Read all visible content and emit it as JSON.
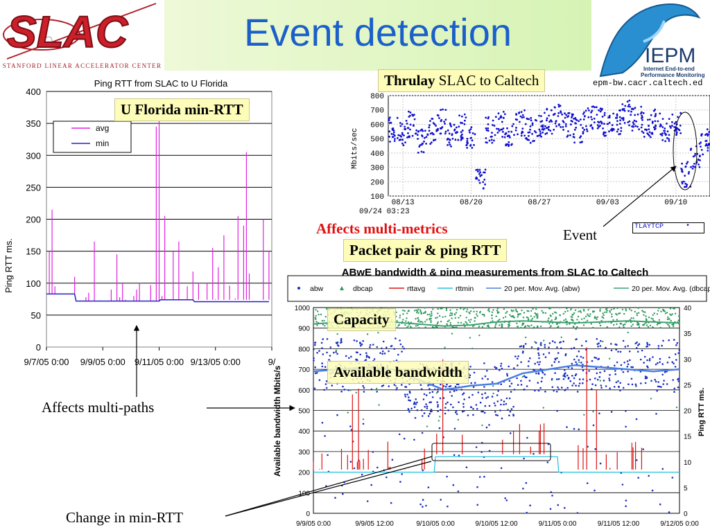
{
  "slide": {
    "title": "Event detection",
    "slac_logo_text": "SLAC",
    "slac_caption": "Stanford Linear Accelerator Center",
    "iepm_logo_text": "IEPM",
    "iepm_caption_1": "Internet End-to-end",
    "iepm_caption_2": "Performance Monitoring"
  },
  "annotations": {
    "ufl_min_rtt": "U Florida min-RTT",
    "thrulay_bold": "Thrulay",
    "thrulay_rest": " SLAC to Caltech",
    "affects_multi_metrics": "Affects multi-metrics",
    "event": "Event",
    "packet_pair": "Packet pair & ping RTT",
    "capacity": "Capacity",
    "available_bandwidth": "Available bandwidth",
    "affects_multi_paths": "Affects multi-paths",
    "change_min_rtt": "Change in min-RTT"
  },
  "colors": {
    "title": "#1b5fc9",
    "avg": "#e020e0",
    "min": "#2020c0",
    "thrulay_points": "#1010d0",
    "abw": "#1a2fbf",
    "dbcap": "#2e9a5a",
    "rttavg": "#e01010",
    "rttmin": "#20c0e0",
    "mov_abw": "#4a7fe0",
    "mov_dbcap": "#3aa070",
    "highlight": "#fdfdb9"
  },
  "chart_data": [
    {
      "type": "line",
      "title": "Ping RTT from SLAC to U Florida",
      "ylabel": "Ping RTT ms.",
      "xlabel": "",
      "ylim": [
        0,
        400
      ],
      "yticks": [
        0,
        50,
        100,
        150,
        200,
        250,
        300,
        350,
        400
      ],
      "xticks": [
        "9/7/05 0:00",
        "9/9/05 0:00",
        "9/11/05 0:00",
        "9/13/05 0:00",
        "9/"
      ],
      "grid": true,
      "legend": "top-left",
      "series": [
        {
          "name": "avg",
          "x": [
            0.0,
            0.1,
            0.2,
            0.3,
            0.4,
            0.5,
            0.6,
            0.7,
            0.8,
            0.9,
            1.0,
            1.1,
            1.2,
            1.3,
            1.4,
            1.5,
            1.6,
            1.7,
            1.8,
            1.9,
            2.0,
            2.1,
            2.2,
            2.3,
            2.4,
            2.5,
            2.6,
            2.7,
            2.8,
            2.9,
            3.0,
            3.1,
            3.2,
            3.3,
            3.4,
            3.5,
            3.6,
            3.7,
            3.8,
            3.9,
            4.0,
            4.1,
            4.2,
            4.3,
            4.4,
            4.5,
            4.6,
            4.7,
            4.8,
            4.9,
            5.0,
            5.1,
            5.2,
            5.3,
            5.4,
            5.5,
            5.6,
            5.7,
            5.8,
            5.9,
            6.0,
            6.1,
            6.2,
            6.3,
            6.4,
            6.5,
            6.6,
            6.7,
            6.8,
            6.9,
            7.0,
            7.1,
            7.2,
            7.3,
            7.4,
            7.5,
            7.6,
            7.7,
            7.8,
            7.9
          ],
          "values": [
            83,
            150,
            215,
            95,
            83,
            83,
            83,
            83,
            83,
            83,
            110,
            72,
            73,
            72,
            78,
            85,
            72,
            165,
            72,
            73,
            72,
            72,
            73,
            90,
            73,
            145,
            78,
            100,
            74,
            72,
            72,
            80,
            90,
            100,
            72,
            72,
            72,
            97,
            73,
            345,
            380,
            80,
            205,
            74,
            74,
            150,
            74,
            165,
            74,
            74,
            95,
            74,
            118,
            74,
            100,
            74,
            74,
            100,
            74,
            155,
            75,
            125,
            74,
            175,
            74,
            96,
            74,
            76,
            205,
            74,
            190,
            305,
            115,
            74,
            74,
            74,
            74,
            200,
            74,
            150
          ],
          "note": "spiky per-sample avg RTT"
        },
        {
          "name": "min",
          "x": [
            0.0,
            1.0,
            1.05,
            4.0,
            4.05,
            5.2,
            5.25,
            7.9
          ],
          "values": [
            83,
            83,
            72,
            72,
            74,
            74,
            71,
            71
          ]
        }
      ]
    },
    {
      "type": "scatter",
      "title": "Thrulay SLAC to Caltech",
      "header_text": "epm-bw.cacr.caltech.ed",
      "ylabel": "Mbits/sec",
      "ylim": [
        100,
        800
      ],
      "yticks": [
        100,
        200,
        300,
        400,
        500,
        600,
        700,
        800
      ],
      "xticks": [
        "08/13",
        "08/20",
        "08/27",
        "09/03",
        "09/10"
      ],
      "x_start_label": "09/24 03:23",
      "legend": "bottom-right",
      "series": [
        {
          "name": "TLAYTCP",
          "description": "throughput samples mostly 450–700 Mbits/sec, dropping to ~200–400 around 09/10 (event)",
          "x_days": [
            0,
            1,
            2,
            3,
            4,
            5,
            6,
            7,
            8,
            9,
            10,
            11,
            12,
            13,
            14,
            15,
            16,
            17,
            18,
            19,
            20,
            21,
            22,
            23,
            24,
            25,
            26,
            27,
            28,
            29,
            30,
            31,
            32
          ],
          "values": [
            560,
            540,
            600,
            480,
            550,
            620,
            520,
            580,
            500,
            230,
            560,
            600,
            520,
            610,
            560,
            580,
            620,
            650,
            600,
            560,
            640,
            660,
            600,
            620,
            680,
            640,
            600,
            620,
            550,
            600,
            250,
            380,
            480
          ]
        }
      ]
    },
    {
      "type": "line",
      "title": "ABwE bandwidth & ping measurements from SLAC to Caltech",
      "ylabel": "Available bandwidth Mbits/s",
      "y2label": "Ping RTT ms.",
      "ylim": [
        0,
        1000
      ],
      "y2lim": [
        0,
        40
      ],
      "yticks": [
        0,
        100,
        200,
        300,
        400,
        500,
        600,
        700,
        800,
        900,
        1000
      ],
      "y2ticks": [
        0,
        5,
        10,
        15,
        20,
        25,
        30,
        35,
        40
      ],
      "xticks": [
        "9/9/05 0:00",
        "9/9/05 12:00",
        "9/10/05 0:00",
        "9/10/05 12:00",
        "9/11/05 0:00",
        "9/11/05 12:00",
        "9/12/05 0:00"
      ],
      "legend": "top",
      "series": [
        {
          "name": "abw",
          "description": "scatter mostly 600–900 Mbits/s, dips 500–700 mid-range"
        },
        {
          "name": "dbcap",
          "description": "capacity ~900–980 Mbits/s"
        },
        {
          "name": "rttavg",
          "axis": "y2",
          "baseline": 8.5,
          "step_to": 11.5,
          "step_from": "9/10/05 0:00",
          "step_until": "9/11/05 0:00"
        },
        {
          "name": "rttmin",
          "axis": "y2",
          "baseline": 8.0,
          "step_to": 11.0,
          "step_from": "9/10/05 0:00",
          "step_until": "9/11/05 0:00"
        },
        {
          "name": "20 per. Mov. Avg. (abw)",
          "values": [
            690,
            700,
            710,
            700,
            650,
            600,
            620,
            630,
            680,
            700,
            720,
            710,
            700,
            690,
            700
          ]
        },
        {
          "name": "20 per. Mov. Avg. (dbcap)",
          "values": [
            920,
            930,
            925,
            930,
            920,
            910,
            915,
            930,
            935,
            930,
            925,
            930,
            935,
            930,
            925
          ]
        }
      ]
    }
  ]
}
